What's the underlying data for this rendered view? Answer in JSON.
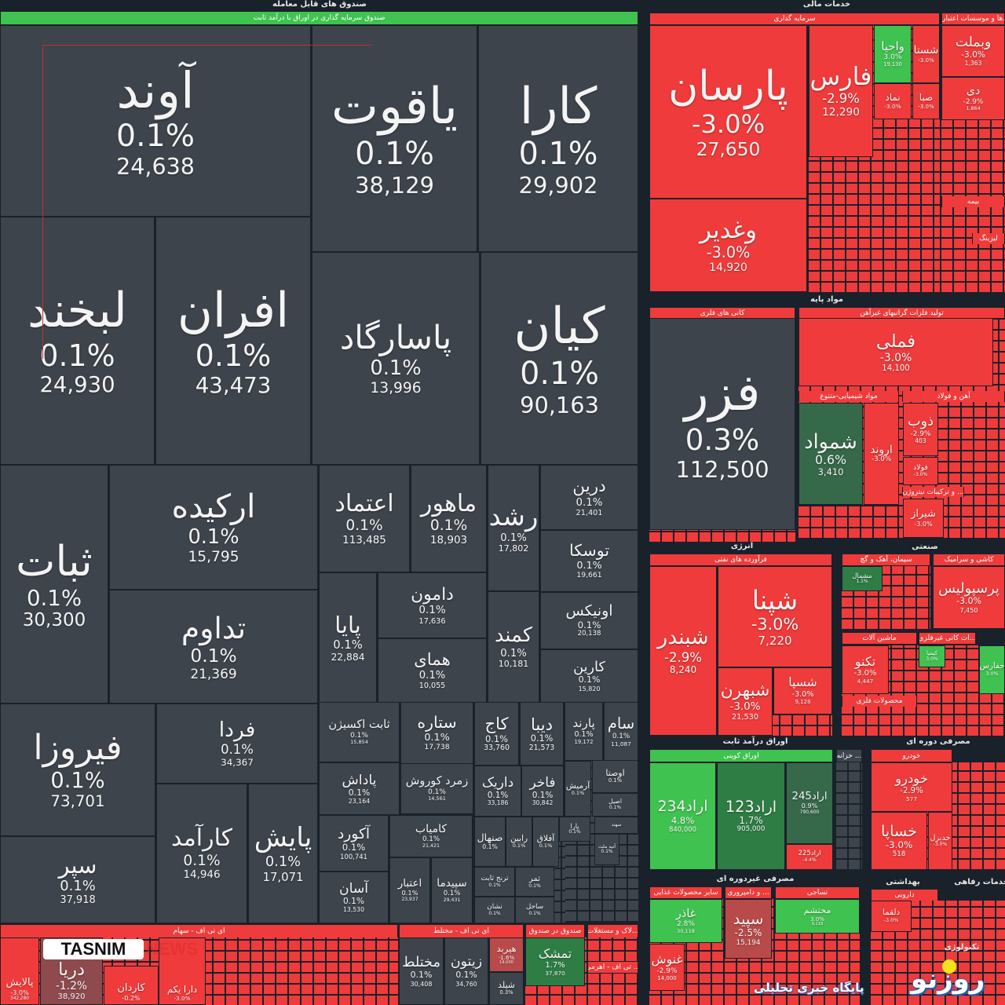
{
  "colors": {
    "up": "#3fc24f",
    "down": "#ef3b3b",
    "flat": "#3d444c",
    "background": "#19212a"
  },
  "groups": [
    "صندوق های قابل معامله",
    "خدمات مالی",
    "مواد پایه",
    "انرژی",
    "صنعتی",
    "اوراق درآمد ثابت",
    "مصرفی دوره ای",
    "مصرفی غیردوره ای",
    "بهداشتی",
    "خدمات رفاهی",
    "تکنولوژی"
  ],
  "sections": [
    "صندوق سرمایه گذاری در اوراق با درآمد ثابت",
    "سرمایه گذاری",
    "...ها و موسسات اعتباری",
    "بیمه",
    "کانی های فلزی",
    "تولید فلزات گرانبهای غیرآهن",
    "مواد شیمیایی-متنوع",
    "آهن و فولاد",
    "... و ترکیبات نیتروژن",
    "فرآورده های نفتی",
    "سیمان، آهک و گچ",
    "کاشی و سرامیک",
    "ماشین آلات",
    "محصولات فلزی",
    "اوراق کوپنی",
    "... خزانه",
    "خودرو",
    "سایر محصولات غذایی",
    "... و دامپروری",
    "نساجی",
    "دارویی",
    "ای تی اف - سهام",
    "ای تی اف - مختلط",
    "صندوق در صندوق",
    "...لاک و مستغلات",
    "... تی اف - اهرمی",
    "...ات کانی غیرفلزی",
    "لیزینگ"
  ],
  "tiles": [
    {
      "name": "آوند",
      "change": "0.1%",
      "price": "24,638",
      "state": "flat"
    },
    {
      "name": "یاقوت",
      "change": "0.1%",
      "price": "38,129",
      "state": "flat"
    },
    {
      "name": "کارا",
      "change": "0.1%",
      "price": "29,902",
      "state": "flat"
    },
    {
      "name": "لبخند",
      "change": "0.1%",
      "price": "24,930",
      "state": "flat"
    },
    {
      "name": "افران",
      "change": "0.1%",
      "price": "43,473",
      "state": "flat"
    },
    {
      "name": "پاسارگاد",
      "change": "0.1%",
      "price": "13,996",
      "state": "flat"
    },
    {
      "name": "کیان",
      "change": "0.1%",
      "price": "90,163",
      "state": "flat"
    },
    {
      "name": "ثبات",
      "change": "0.1%",
      "price": "30,300",
      "state": "flat"
    },
    {
      "name": "ارکیده",
      "change": "0.1%",
      "price": "15,795",
      "state": "flat"
    },
    {
      "name": "تداوم",
      "change": "0.1%",
      "price": "21,369",
      "state": "flat"
    },
    {
      "name": "اعتماد",
      "change": "0.1%",
      "price": "113,485",
      "state": "flat"
    },
    {
      "name": "ماهور",
      "change": "0.1%",
      "price": "18,903",
      "state": "flat"
    },
    {
      "name": "رشد",
      "change": "0.1%",
      "price": "17,802",
      "state": "flat"
    },
    {
      "name": "درین",
      "change": "0.1%",
      "price": "21,401",
      "state": "flat"
    },
    {
      "name": "توسکا",
      "change": "0.1%",
      "price": "19,661",
      "state": "flat"
    },
    {
      "name": "پایا",
      "change": "0.1%",
      "price": "22,884",
      "state": "flat"
    },
    {
      "name": "دامون",
      "change": "0.1%",
      "price": "17,636",
      "state": "flat"
    },
    {
      "name": "همای",
      "change": "0.1%",
      "price": "10,055",
      "state": "flat"
    },
    {
      "name": "کمند",
      "change": "0.1%",
      "price": "10,181",
      "state": "flat"
    },
    {
      "name": "اونیکس",
      "change": "0.1%",
      "price": "20,138",
      "state": "flat"
    },
    {
      "name": "کارین",
      "change": "0.1%",
      "price": "15,820",
      "state": "flat"
    },
    {
      "name": "فیروزا",
      "change": "0.1%",
      "price": "73,701",
      "state": "flat"
    },
    {
      "name": "سپر",
      "change": "0.1%",
      "price": "37,918",
      "state": "flat"
    },
    {
      "name": "فردا",
      "change": "0.1%",
      "price": "34,367",
      "state": "flat"
    },
    {
      "name": "کارآمد",
      "change": "0.1%",
      "price": "14,946",
      "state": "flat"
    },
    {
      "name": "پایش",
      "change": "0.1%",
      "price": "17,071",
      "state": "flat"
    },
    {
      "name": "ثابت اکسیژن",
      "change": "0.1%",
      "price": "15,854",
      "state": "flat"
    },
    {
      "name": "ستاره",
      "change": "0.1%",
      "price": "17,738",
      "state": "flat"
    },
    {
      "name": "کاج",
      "change": "0.1%",
      "price": "33,760",
      "state": "flat"
    },
    {
      "name": "دیبا",
      "change": "0.1%",
      "price": "21,573",
      "state": "flat"
    },
    {
      "name": "پارند",
      "change": "0.1%",
      "price": "19,172",
      "state": "flat"
    },
    {
      "name": "سام",
      "change": "0.1%",
      "price": "11,087",
      "state": "flat"
    },
    {
      "name": "پاداش",
      "change": "0.1%",
      "price": "23,164",
      "state": "flat"
    },
    {
      "name": "زمرد کوروش",
      "change": "0.1%",
      "price": "14,561",
      "state": "flat"
    },
    {
      "name": "داریک",
      "change": "0.1%",
      "price": "33,186",
      "state": "flat"
    },
    {
      "name": "فاخر",
      "change": "0.1%",
      "price": "30,842",
      "state": "flat"
    },
    {
      "name": "آرمیش",
      "change": "0.1%",
      "price": "",
      "state": "flat"
    },
    {
      "name": "اوصتا",
      "change": "0.1%",
      "price": "",
      "state": "flat"
    },
    {
      "name": "اصیل",
      "change": "0.1%",
      "price": "",
      "state": "flat"
    },
    {
      "name": "آکورد",
      "change": "0.1%",
      "price": "100,741",
      "state": "flat"
    },
    {
      "name": "کامیاب",
      "change": "0.1%",
      "price": "21,421",
      "state": "flat"
    },
    {
      "name": "آسان",
      "change": "0.1%",
      "price": "13,530",
      "state": "flat"
    },
    {
      "name": "اعتبار",
      "change": "0.1%",
      "price": "23,937",
      "state": "flat"
    },
    {
      "name": "سپیدما",
      "change": "0.1%",
      "price": "29,431",
      "state": "flat"
    },
    {
      "name": "صنهال",
      "change": "0.1%",
      "price": "",
      "state": "flat"
    },
    {
      "name": "رابین",
      "change": "0.1%",
      "price": "",
      "state": "flat"
    },
    {
      "name": "آفلاق",
      "change": "0.1%",
      "price": "",
      "state": "flat"
    },
    {
      "name": "یارا",
      "change": "0.1%",
      "price": "",
      "state": "flat"
    },
    {
      "name": "سهند",
      "change": "",
      "price": "",
      "state": "flat"
    },
    {
      "name": "آتیه ملت",
      "change": "0.1%",
      "price": "",
      "state": "flat"
    },
    {
      "name": "ترنج ثابت",
      "change": "0.1%",
      "price": "",
      "state": "flat"
    },
    {
      "name": "ثمر",
      "change": "0.1%",
      "price": "",
      "state": "flat"
    },
    {
      "name": "نشان",
      "change": "0.1%",
      "price": "",
      "state": "flat"
    },
    {
      "name": "ساحل",
      "change": "0.1%",
      "price": "",
      "state": "flat"
    },
    {
      "name": "پالایش",
      "change": "-3.0%",
      "price": "342,280",
      "state": "down"
    },
    {
      "name": "دریا",
      "change": "-1.2%",
      "price": "38,920",
      "state": "down3"
    },
    {
      "name": "کاردان",
      "change": "-0.2%",
      "price": "",
      "state": "down"
    },
    {
      "name": "دارا یکم",
      "change": "-3.0%",
      "price": "",
      "state": "down"
    },
    {
      "name": "مختلط",
      "change": "0.1%",
      "price": "30,408",
      "state": "flat"
    },
    {
      "name": "زیتون",
      "change": "0.1%",
      "price": "34,760",
      "state": "flat"
    },
    {
      "name": "هیربد",
      "change": "-1.6%",
      "price": "19,000",
      "state": "down2"
    },
    {
      "name": "شیلد",
      "change": "0.3%",
      "price": "",
      "state": "flat"
    },
    {
      "name": "تمشک",
      "change": "1.7%",
      "price": "37,870",
      "state": "up2"
    },
    {
      "name": "پارسان",
      "change": "-3.0%",
      "price": "27,650",
      "state": "down"
    },
    {
      "name": "وغدیر",
      "change": "-3.0%",
      "price": "14,920",
      "state": "down"
    },
    {
      "name": "فارس",
      "change": "-2.9%",
      "price": "12,290",
      "state": "down"
    },
    {
      "name": "واحیا",
      "change": "3.0%",
      "price": "19,130",
      "state": "up"
    },
    {
      "name": "شستا",
      "change": "-3.0%",
      "price": "",
      "state": "down"
    },
    {
      "name": "نماد",
      "change": "-3.0%",
      "price": "",
      "state": "down"
    },
    {
      "name": "صبا",
      "change": "-3.0%",
      "price": "",
      "state": "down"
    },
    {
      "name": "وبملت",
      "change": "-3.0%",
      "price": "1,363",
      "state": "down"
    },
    {
      "name": "دی",
      "change": "-2.9%",
      "price": "1,864",
      "state": "down"
    },
    {
      "name": "فزر",
      "change": "0.3%",
      "price": "112,500",
      "state": "flat"
    },
    {
      "name": "فملی",
      "change": "-3.0%",
      "price": "14,100",
      "state": "down"
    },
    {
      "name": "شمواد",
      "change": "0.6%",
      "price": "3,410",
      "state": "up3"
    },
    {
      "name": "اروند",
      "change": "-3.0%",
      "price": "",
      "state": "down"
    },
    {
      "name": "ذوب",
      "change": "-2.9%",
      "price": "403",
      "state": "down"
    },
    {
      "name": "فولاد",
      "change": "-3.0%",
      "price": "",
      "state": "down"
    },
    {
      "name": "شیراز",
      "change": "-3.0%",
      "price": "",
      "state": "down"
    },
    {
      "name": "شبندر",
      "change": "-2.9%",
      "price": "8,240",
      "state": "down"
    },
    {
      "name": "شپنا",
      "change": "-3.0%",
      "price": "7,220",
      "state": "down"
    },
    {
      "name": "شبهرن",
      "change": "-3.0%",
      "price": "21,530",
      "state": "down"
    },
    {
      "name": "شسپا",
      "change": "-3.0%",
      "price": "9,128",
      "state": "down"
    },
    {
      "name": "مشمال",
      "change": "1.1%",
      "price": "",
      "state": "up2"
    },
    {
      "name": "پرسپولیس",
      "change": "-3.0%",
      "price": "7,450",
      "state": "down"
    },
    {
      "name": "تکنو",
      "change": "-3.0%",
      "price": "4,447",
      "state": "down"
    },
    {
      "name": "کیمیا",
      "change": "3.0%",
      "price": "",
      "state": "up"
    },
    {
      "name": "حفارس",
      "change": "3.0%",
      "price": "",
      "state": "up"
    },
    {
      "name": "اراد234",
      "change": "4.8%",
      "price": "840,000",
      "state": "up"
    },
    {
      "name": "اراد123",
      "change": "1.7%",
      "price": "905,000",
      "state": "up2"
    },
    {
      "name": "اراد245",
      "change": "0.9%",
      "price": "790,600",
      "state": "up3"
    },
    {
      "name": "اراد225",
      "change": "-4.4%",
      "price": "",
      "state": "down"
    },
    {
      "name": "خودرو",
      "change": "-2.9%",
      "price": "577",
      "state": "down"
    },
    {
      "name": "خساپا",
      "change": "-3.0%",
      "price": "518",
      "state": "down"
    },
    {
      "name": "خدیزل",
      "change": "-3.0%",
      "price": "",
      "state": "down"
    },
    {
      "name": "غاذر",
      "change": "2.8%",
      "price": "30,118",
      "state": "up"
    },
    {
      "name": "غنوش",
      "change": "-2.9%",
      "price": "14,000",
      "state": "down"
    },
    {
      "name": "سپید",
      "change": "-2.5%",
      "price": "15,194",
      "state": "down2"
    },
    {
      "name": "محتشم",
      "change": "3.0%",
      "price": "9,118",
      "state": "up"
    },
    {
      "name": "دلقما",
      "change": "-3.0%",
      "price": "",
      "state": "down"
    }
  ],
  "watermarks": {
    "tasnim": "TASNIM",
    "tasnim_news": "NEWS",
    "roozno": "روزنو",
    "roozno_tagline": "پایگاه خبری تحلیلی"
  }
}
